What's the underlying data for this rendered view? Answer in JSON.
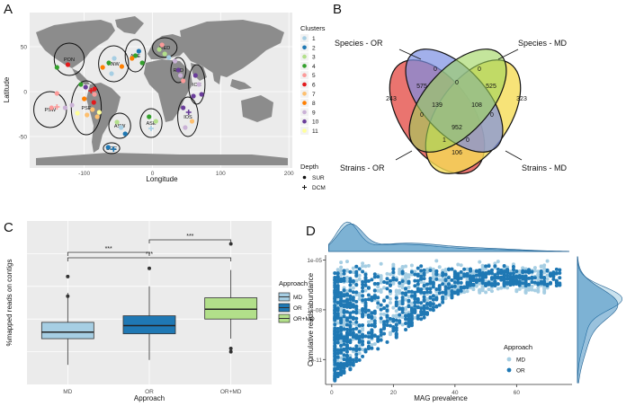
{
  "panels": {
    "a": "A",
    "b": "B",
    "c": "C",
    "d": "D"
  },
  "chart_data": [
    {
      "type": "scatter",
      "xlabel": "Longitude",
      "ylabel": "Latitude",
      "xticks": [
        "-100",
        "0",
        "100",
        "200"
      ],
      "xtick_values": [
        -100,
        0,
        100,
        200
      ],
      "yticks": [
        "50",
        "0",
        "-50"
      ],
      "ytick_values": [
        50,
        0,
        -50
      ],
      "xlim": [
        -180,
        205
      ],
      "ylim": [
        -85,
        88
      ],
      "legend_clusters": {
        "title": "Clusters",
        "items": [
          "1",
          "2",
          "3",
          "4",
          "5",
          "6",
          "7",
          "8",
          "9",
          "10",
          "11"
        ],
        "colors": [
          "#a6cee3",
          "#1f78b4",
          "#b2df8a",
          "#33a02c",
          "#fb9a99",
          "#e31a1c",
          "#fdbf6f",
          "#ff7f00",
          "#cab2d6",
          "#6a3d9a",
          "#ffff99"
        ]
      },
      "legend_depth": {
        "title": "Depth",
        "items": [
          "SUR",
          "DCM"
        ]
      },
      "regions": [
        {
          "name": "PON",
          "lon": -122,
          "lat": 36,
          "rlon": 22,
          "rlat": 18
        },
        {
          "name": "ANW",
          "lon": -57,
          "lat": 31,
          "rlon": 22,
          "rlat": 20
        },
        {
          "name": "ANE",
          "lon": -25,
          "lat": 40,
          "rlon": 15,
          "rlat": 18
        },
        {
          "name": "MED",
          "lon": 18,
          "lat": 49,
          "rlon": 18,
          "rlat": 11
        },
        {
          "name": "RED",
          "lon": 38,
          "lat": 24,
          "rlon": 11,
          "rlat": 14
        },
        {
          "name": "ION",
          "lon": 65,
          "lat": 8,
          "rlon": 12,
          "rlat": 22
        },
        {
          "name": "PSW",
          "lon": -150,
          "lat": -20,
          "rlon": 24,
          "rlat": 20
        },
        {
          "name": "PSE",
          "lon": -97,
          "lat": -18,
          "rlon": 22,
          "rlat": 30
        },
        {
          "name": "ASW",
          "lon": -48,
          "lat": -38,
          "rlon": 16,
          "rlat": 14
        },
        {
          "name": "ASE",
          "lon": -2,
          "lat": -35,
          "rlon": 16,
          "rlat": 16
        },
        {
          "name": "IOS",
          "lon": 52,
          "lat": -28,
          "rlon": 15,
          "rlat": 22
        },
        {
          "name": "SOC",
          "lon": -60,
          "lat": -63,
          "rlon": 12,
          "rlat": 6
        }
      ],
      "points": [
        {
          "lon": -140,
          "lat": 27,
          "c": 4,
          "d": "SUR"
        },
        {
          "lon": -124,
          "lat": 30,
          "c": 6,
          "d": "SUR"
        },
        {
          "lon": -140,
          "lat": -2,
          "c": 5,
          "d": "SUR"
        },
        {
          "lon": -148,
          "lat": -18,
          "c": 5,
          "d": "SUR"
        },
        {
          "lon": -140,
          "lat": -17,
          "c": 5,
          "d": "DCM"
        },
        {
          "lon": -128,
          "lat": -18,
          "c": 9,
          "d": "SUR"
        },
        {
          "lon": -118,
          "lat": -15,
          "c": 9,
          "d": "SUR"
        },
        {
          "lon": -105,
          "lat": 8,
          "c": 4,
          "d": "SUR"
        },
        {
          "lon": -98,
          "lat": 5,
          "c": 10,
          "d": "SUR"
        },
        {
          "lon": -100,
          "lat": -8,
          "c": 8,
          "d": "SUR"
        },
        {
          "lon": -90,
          "lat": 1,
          "c": 6,
          "d": "DCM"
        },
        {
          "lon": -85,
          "lat": 3,
          "c": 6,
          "d": "SUR"
        },
        {
          "lon": -85,
          "lat": -3,
          "c": 5,
          "d": "SUR"
        },
        {
          "lon": -86,
          "lat": -12,
          "c": 6,
          "d": "SUR"
        },
        {
          "lon": -88,
          "lat": -20,
          "c": 7,
          "d": "SUR"
        },
        {
          "lon": -96,
          "lat": -26,
          "c": 7,
          "d": "SUR"
        },
        {
          "lon": -110,
          "lat": -24,
          "c": 11,
          "d": "SUR"
        },
        {
          "lon": -78,
          "lat": -23,
          "c": 11,
          "d": "SUR"
        },
        {
          "lon": -81,
          "lat": -28,
          "c": 7,
          "d": "SUR"
        },
        {
          "lon": -73,
          "lat": 27,
          "c": 8,
          "d": "SUR"
        },
        {
          "lon": -64,
          "lat": 32,
          "c": 4,
          "d": "SUR"
        },
        {
          "lon": -56,
          "lat": 37,
          "c": 1,
          "d": "SUR"
        },
        {
          "lon": -45,
          "lat": 28,
          "c": 8,
          "d": "SUR"
        },
        {
          "lon": -60,
          "lat": 20,
          "c": 1,
          "d": "SUR"
        },
        {
          "lon": -25,
          "lat": 40,
          "c": 4,
          "d": "SUR"
        },
        {
          "lon": -30,
          "lat": 37,
          "c": 8,
          "d": "SUR"
        },
        {
          "lon": -20,
          "lat": 45,
          "c": 2,
          "d": "SUR"
        },
        {
          "lon": -15,
          "lat": 32,
          "c": 4,
          "d": "SUR"
        },
        {
          "lon": -52,
          "lat": -34,
          "c": 3,
          "d": "SUR"
        },
        {
          "lon": -46,
          "lat": -40,
          "c": 1,
          "d": "SUR"
        },
        {
          "lon": -40,
          "lat": -47,
          "c": 2,
          "d": "SUR"
        },
        {
          "lon": -5,
          "lat": -28,
          "c": 4,
          "d": "SUR"
        },
        {
          "lon": 5,
          "lat": -33,
          "c": 3,
          "d": "SUR"
        },
        {
          "lon": -2,
          "lat": -41,
          "c": 1,
          "d": "DCM"
        },
        {
          "lon": 10,
          "lat": 47,
          "c": 3,
          "d": "SUR"
        },
        {
          "lon": 18,
          "lat": 42,
          "c": 3,
          "d": "SUR"
        },
        {
          "lon": 24,
          "lat": 38,
          "c": 1,
          "d": "SUR"
        },
        {
          "lon": 14,
          "lat": 52,
          "c": 5,
          "d": "SUR"
        },
        {
          "lon": 33,
          "lat": 34,
          "c": 9,
          "d": "SUR"
        },
        {
          "lon": 38,
          "lat": 24,
          "c": 10,
          "d": "SUR"
        },
        {
          "lon": 41,
          "lat": 18,
          "c": 9,
          "d": "SUR"
        },
        {
          "lon": 45,
          "lat": 12,
          "c": 5,
          "d": "SUR"
        },
        {
          "lon": 63,
          "lat": 18,
          "c": 10,
          "d": "SUR"
        },
        {
          "lon": 68,
          "lat": 8,
          "c": 9,
          "d": "SUR"
        },
        {
          "lon": 60,
          "lat": -5,
          "c": 10,
          "d": "SUR"
        },
        {
          "lon": 72,
          "lat": -3,
          "c": 10,
          "d": "SUR"
        },
        {
          "lon": 45,
          "lat": -18,
          "c": 10,
          "d": "SUR"
        },
        {
          "lon": 53,
          "lat": -23,
          "c": 10,
          "d": "DCM"
        },
        {
          "lon": 58,
          "lat": -33,
          "c": 7,
          "d": "SUR"
        },
        {
          "lon": 48,
          "lat": -40,
          "c": 9,
          "d": "SUR"
        },
        {
          "lon": -65,
          "lat": -62,
          "c": 2,
          "d": "SUR"
        },
        {
          "lon": -57,
          "lat": -64,
          "c": 2,
          "d": "DCM"
        }
      ]
    },
    {
      "type": "venn",
      "sets": [
        "Species - OR",
        "Species - MD",
        "Strains - OR",
        "Strains - MD"
      ],
      "colors": [
        "#7b8ee3",
        "#9dd35a",
        "#e8655f",
        "#f5dc56"
      ],
      "regions": [
        {
          "label": "0",
          "set": "Species - OR only"
        },
        {
          "label": "0",
          "set": "Species - MD only"
        },
        {
          "label": "243",
          "set": "Strains - OR only"
        },
        {
          "label": "323",
          "set": "Strains - MD only"
        },
        {
          "label": "575",
          "set": "Species - OR & Strains - OR"
        },
        {
          "label": "0",
          "set": "Species - OR & Species - MD"
        },
        {
          "label": "525",
          "set": "Species - MD & Strains - MD"
        },
        {
          "label": "139",
          "set": "Species - OR & Species - MD & Strains - OR"
        },
        {
          "label": "108",
          "set": "Species - OR & Species - MD & Strains - MD"
        },
        {
          "label": "952",
          "set": "All four"
        },
        {
          "label": "0",
          "set": "Strains - OR & Species - MD"
        },
        {
          "label": "0",
          "set": "Species - OR & Strains - MD"
        },
        {
          "label": "1",
          "set": "Species - MD & Strains - OR & Strains - MD"
        },
        {
          "label": "0",
          "set": "Species - OR & Strains - OR & Strains - MD"
        },
        {
          "label": "106",
          "set": "Strains - OR & Strains - MD"
        }
      ]
    },
    {
      "type": "box",
      "categories": [
        "MD",
        "OR",
        "OR+MD"
      ],
      "xlabel": "Approach",
      "ylabel": "%mapped reads on contigs",
      "legend_title": "Approach",
      "legend": [
        "MD",
        "OR",
        "OR+MD"
      ],
      "colors": [
        "#a6cee3",
        "#1f78b4",
        "#b2df8a"
      ],
      "ylim": [
        0,
        50
      ],
      "boxes": [
        {
          "q1": 14,
          "median": 16,
          "q3": 19,
          "whisker_low": 6,
          "whisker_high": 28,
          "outliers": [
            33,
            27
          ]
        },
        {
          "q1": 15.5,
          "median": 18,
          "q3": 21,
          "whisker_low": 7.5,
          "whisker_high": 30,
          "outliers": [
            35.5
          ]
        },
        {
          "q1": 20,
          "median": 23,
          "q3": 26.5,
          "whisker_low": 14,
          "whisker_high": 35,
          "outliers": [
            43,
            11,
            10
          ]
        }
      ],
      "significance": [
        {
          "from": "MD",
          "to": "OR+MD",
          "label": "***"
        },
        {
          "from": "OR",
          "to": "OR+MD",
          "label": "***"
        },
        {
          "from": "MD",
          "to": "OR",
          "label": "***"
        }
      ]
    },
    {
      "type": "scatter",
      "xlabel": "MAG prevalence",
      "ylabel": "Cumulative reads abundance",
      "xticks": [
        "0",
        "20",
        "40",
        "60"
      ],
      "xtick_values": [
        0,
        20,
        40,
        60
      ],
      "yticks": [
        "1e-05",
        "1e-08",
        "1e-11"
      ],
      "ytick_exponents": [
        -5,
        -8,
        -11
      ],
      "y_scale": "log10",
      "xlim": [
        -2,
        78
      ],
      "ylim_log10": [
        -12.5,
        -4.7
      ],
      "legend_title": "Approach",
      "series": [
        {
          "name": "MD",
          "color": "#a6cee3"
        },
        {
          "name": "OR",
          "color": "#1f78b4"
        }
      ],
      "marginal_density": true
    }
  ]
}
